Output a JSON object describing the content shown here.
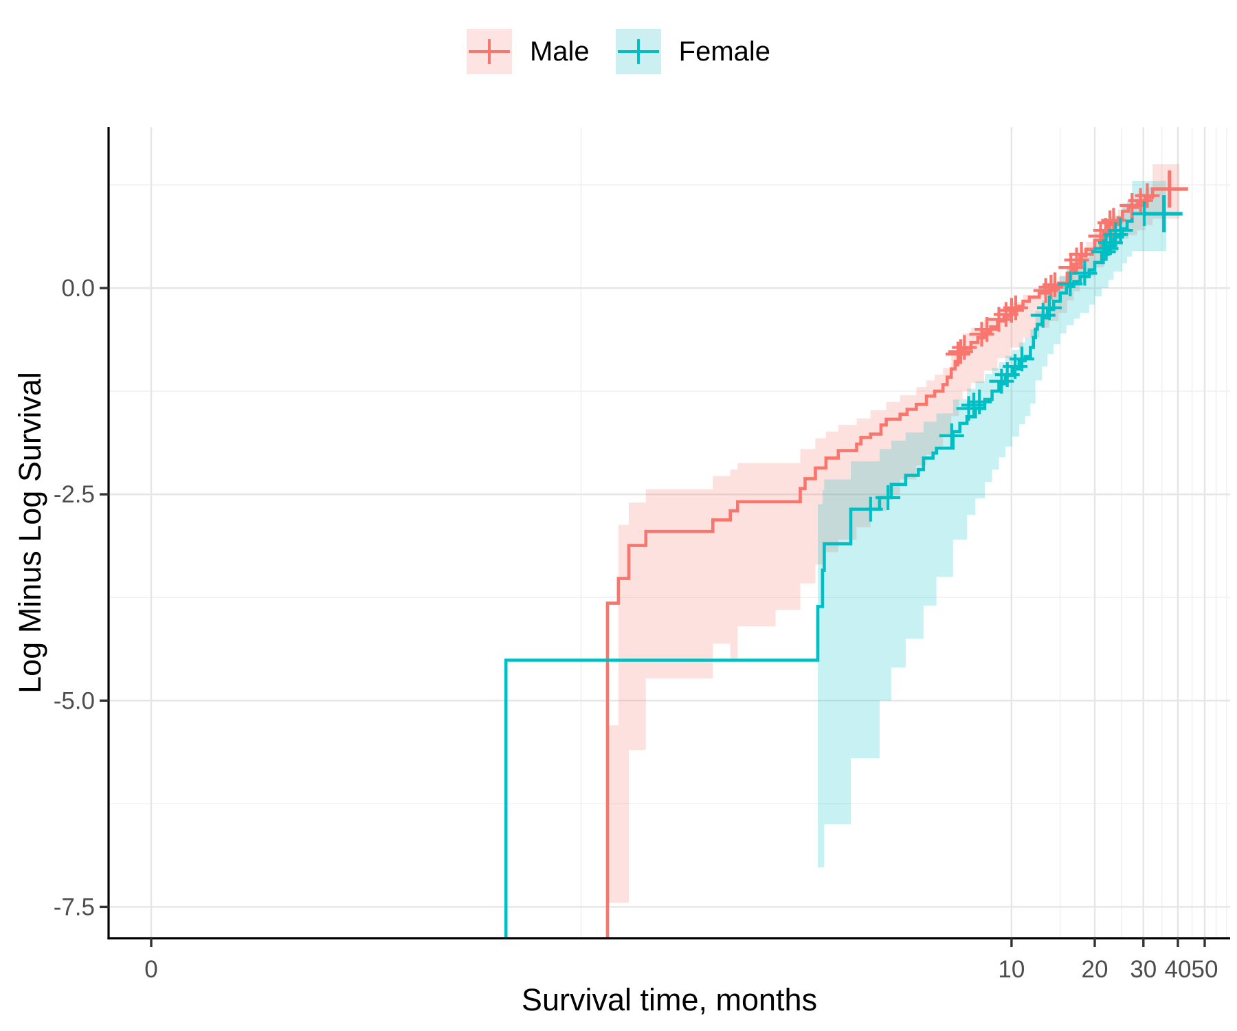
{
  "legend": {
    "position": "top",
    "items": [
      {
        "label": "Male",
        "color": "#F8766D",
        "key_fill": "#FDE4E2"
      },
      {
        "label": "Female",
        "color": "#00BFC4",
        "key_fill": "#CCF0F2"
      }
    ]
  },
  "colors": {
    "male": "#F8766D",
    "female": "#00BFC4",
    "ribbon_opacity": 0.22,
    "grid_major": "#E6E6E6",
    "grid_minor": "#F2F2F2",
    "axis_line": "#000000",
    "tick_mark": "#333333",
    "tick_text": "#4D4D4D"
  },
  "chart_data": {
    "type": "line",
    "subtype": "kaplan-meier-cloglog-step",
    "title": "",
    "xlabel": "Survival time, months",
    "ylabel": "Log Minus Log Survival",
    "x_scale": "log",
    "x_domain": [
      0.0054,
      61.8
    ],
    "y_domain": [
      -7.88,
      1.95
    ],
    "grid": true,
    "x_ticks": [
      {
        "label": "0",
        "value": 0,
        "pos": 0.0077
      },
      {
        "label": "10",
        "value": 10,
        "pos": 10
      },
      {
        "label": "20",
        "value": 20,
        "pos": 20
      },
      {
        "label": "30",
        "value": 30,
        "pos": 30
      },
      {
        "label": "40",
        "value": 40,
        "pos": 40
      },
      {
        "label": "50",
        "value": 50,
        "pos": 50
      }
    ],
    "x_minor": [
      0.277,
      15,
      25,
      35,
      45,
      55,
      60
    ],
    "y_ticks": [
      {
        "label": "0.0",
        "value": 0
      },
      {
        "label": "-2.5",
        "value": -2.5
      },
      {
        "label": "-5.0",
        "value": -5.0
      },
      {
        "label": "-7.5",
        "value": -7.5
      }
    ],
    "y_minor": [
      1.25,
      -1.25,
      -3.75,
      -6.25
    ],
    "series": [
      {
        "name": "Male",
        "color": "#F8766D",
        "end_t": 40.5,
        "steps": [
          [
            0.345,
            -3.82
          ],
          [
            0.378,
            -3.52
          ],
          [
            0.412,
            -3.12
          ],
          [
            0.475,
            -2.95
          ],
          [
            0.83,
            -2.81
          ],
          [
            0.96,
            -2.7
          ],
          [
            1.02,
            -2.59
          ],
          [
            1.72,
            -2.43
          ],
          [
            1.79,
            -2.31
          ],
          [
            1.95,
            -2.18
          ],
          [
            2.13,
            -2.06
          ],
          [
            2.36,
            -1.97
          ],
          [
            2.75,
            -1.89
          ],
          [
            2.85,
            -1.81
          ],
          [
            3.09,
            -1.77
          ],
          [
            3.37,
            -1.66
          ],
          [
            3.52,
            -1.59
          ],
          [
            3.95,
            -1.53
          ],
          [
            4.19,
            -1.47
          ],
          [
            4.52,
            -1.41
          ],
          [
            4.92,
            -1.31
          ],
          [
            5.27,
            -1.25
          ],
          [
            5.65,
            -1.17
          ],
          [
            5.85,
            -1.08
          ],
          [
            6.05,
            -0.98
          ],
          [
            6.25,
            -0.89
          ],
          [
            6.45,
            -0.8
          ],
          [
            6.65,
            -0.73
          ],
          [
            7.13,
            -0.66
          ],
          [
            7.55,
            -0.6
          ],
          [
            7.95,
            -0.54
          ],
          [
            8.4,
            -0.47
          ],
          [
            8.9,
            -0.4
          ],
          [
            9.4,
            -0.34
          ],
          [
            9.9,
            -0.28
          ],
          [
            10.4,
            -0.22
          ],
          [
            11.0,
            -0.16
          ],
          [
            11.6,
            -0.11
          ],
          [
            12.6,
            -0.06
          ],
          [
            13.7,
            -0.01
          ],
          [
            14.8,
            0.06
          ],
          [
            15.9,
            0.18
          ],
          [
            16.8,
            0.29
          ],
          [
            17.7,
            0.39
          ],
          [
            18.6,
            0.47
          ],
          [
            20.0,
            0.58
          ],
          [
            21.6,
            0.68
          ],
          [
            22.4,
            0.77
          ],
          [
            24.3,
            0.85
          ],
          [
            25.2,
            0.93
          ],
          [
            26.5,
            0.98
          ],
          [
            28.5,
            1.04
          ],
          [
            30.5,
            1.1
          ],
          [
            32.4,
            1.2
          ]
        ],
        "censors": [
          [
            6.4,
            -0.8
          ],
          [
            6.55,
            -0.77
          ],
          [
            6.75,
            -0.72
          ],
          [
            7.8,
            -0.56
          ],
          [
            8.15,
            -0.5
          ],
          [
            9.0,
            -0.38
          ],
          [
            9.55,
            -0.32
          ],
          [
            10.0,
            -0.27
          ],
          [
            10.35,
            -0.24
          ],
          [
            13.3,
            -0.03
          ],
          [
            13.9,
            0.01
          ],
          [
            14.35,
            0.04
          ],
          [
            16.4,
            0.25
          ],
          [
            17.2,
            0.34
          ],
          [
            17.9,
            0.41
          ],
          [
            21.0,
            0.63
          ],
          [
            21.9,
            0.7
          ],
          [
            22.7,
            0.79
          ],
          [
            23.4,
            0.82
          ],
          [
            27.3,
            1.0
          ],
          [
            29.3,
            1.06
          ],
          [
            31.0,
            1.12
          ]
        ],
        "end_censor": [
          37.3,
          1.2
        ],
        "ribbon": [
          [
            0.345,
            -7.45,
            -5.3
          ],
          [
            0.378,
            -7.45,
            -2.87
          ],
          [
            0.412,
            -5.6,
            -2.6
          ],
          [
            0.475,
            -4.73,
            -2.44
          ],
          [
            0.83,
            -4.31,
            -2.28
          ],
          [
            0.96,
            -4.49,
            -2.2
          ],
          [
            1.02,
            -4.1,
            -2.12
          ],
          [
            1.4,
            -3.9,
            -2.12
          ],
          [
            1.72,
            -3.58,
            -1.95
          ],
          [
            1.95,
            -3.35,
            -1.82
          ],
          [
            2.13,
            -3.2,
            -1.74
          ],
          [
            2.36,
            -3.05,
            -1.66
          ],
          [
            2.75,
            -2.9,
            -1.58
          ],
          [
            3.09,
            -2.7,
            -1.48
          ],
          [
            3.52,
            -2.5,
            -1.38
          ],
          [
            3.95,
            -2.32,
            -1.3
          ],
          [
            4.52,
            -2.15,
            -1.2
          ],
          [
            4.92,
            -2.02,
            -1.12
          ],
          [
            5.27,
            -1.92,
            -1.05
          ],
          [
            5.65,
            -1.8,
            -0.97
          ],
          [
            6.05,
            -1.55,
            -0.8
          ],
          [
            6.45,
            -1.35,
            -0.62
          ],
          [
            6.65,
            -1.25,
            -0.55
          ],
          [
            7.13,
            -1.15,
            -0.48
          ],
          [
            7.95,
            -1.0,
            -0.38
          ],
          [
            8.9,
            -0.85,
            -0.27
          ],
          [
            9.9,
            -0.72,
            -0.17
          ],
          [
            11.0,
            -0.6,
            -0.08
          ],
          [
            12.6,
            -0.48,
            0.0
          ],
          [
            13.7,
            -0.4,
            0.05
          ],
          [
            14.8,
            -0.3,
            0.14
          ],
          [
            15.9,
            -0.15,
            0.27
          ],
          [
            16.8,
            -0.04,
            0.38
          ],
          [
            17.7,
            0.06,
            0.48
          ],
          [
            18.6,
            0.14,
            0.56
          ],
          [
            20.0,
            0.25,
            0.67
          ],
          [
            21.6,
            0.35,
            0.78
          ],
          [
            22.4,
            0.44,
            0.87
          ],
          [
            24.3,
            0.52,
            0.95
          ],
          [
            25.2,
            0.6,
            1.03
          ],
          [
            26.5,
            0.64,
            1.08
          ],
          [
            28.5,
            0.7,
            1.15
          ],
          [
            30.5,
            0.76,
            1.22
          ],
          [
            32.4,
            0.84,
            1.5
          ],
          [
            40.5,
            0.84,
            1.5
          ]
        ]
      },
      {
        "name": "Female",
        "color": "#00BFC4",
        "end_t": 36.3,
        "steps": [
          [
            0.148,
            -4.51
          ],
          [
            1.99,
            -3.86
          ],
          [
            2.07,
            -3.42
          ],
          [
            2.1,
            -3.1
          ],
          [
            2.62,
            -2.68
          ],
          [
            3.33,
            -2.54
          ],
          [
            3.67,
            -2.38
          ],
          [
            4.14,
            -2.27
          ],
          [
            4.6,
            -2.2
          ],
          [
            4.8,
            -2.06
          ],
          [
            5.2,
            -2.0
          ],
          [
            5.35,
            -1.94
          ],
          [
            6.14,
            -1.74
          ],
          [
            6.5,
            -1.64
          ],
          [
            6.9,
            -1.56
          ],
          [
            7.4,
            -1.46
          ],
          [
            8.0,
            -1.35
          ],
          [
            8.5,
            -1.25
          ],
          [
            9.0,
            -1.16
          ],
          [
            9.5,
            -1.06
          ],
          [
            10.05,
            -0.98
          ],
          [
            10.65,
            -0.88
          ],
          [
            11.2,
            -0.83
          ],
          [
            11.7,
            -0.72
          ],
          [
            12.0,
            -0.6
          ],
          [
            12.2,
            -0.5
          ],
          [
            12.4,
            -0.44
          ],
          [
            12.9,
            -0.36
          ],
          [
            13.5,
            -0.26
          ],
          [
            14.2,
            -0.16
          ],
          [
            15.0,
            -0.06
          ],
          [
            15.8,
            0.02
          ],
          [
            16.8,
            0.08
          ],
          [
            17.7,
            0.14
          ],
          [
            19.1,
            0.22
          ],
          [
            20.0,
            0.31
          ],
          [
            21.2,
            0.41
          ],
          [
            22.4,
            0.51
          ],
          [
            23.4,
            0.62
          ],
          [
            25.2,
            0.72
          ],
          [
            26.2,
            0.81
          ],
          [
            27.3,
            0.9
          ]
        ],
        "censors": [
          [
            3.09,
            -2.68
          ],
          [
            3.57,
            -2.54
          ],
          [
            6.07,
            -1.79
          ],
          [
            7.0,
            -1.46
          ],
          [
            7.3,
            -1.42
          ],
          [
            7.65,
            -1.38
          ],
          [
            9.2,
            -1.13
          ],
          [
            9.65,
            -1.05
          ],
          [
            10.3,
            -0.95
          ],
          [
            10.9,
            -0.86
          ],
          [
            13.0,
            -0.33
          ],
          [
            13.7,
            -0.24
          ],
          [
            16.3,
            0.05
          ],
          [
            18.4,
            0.18
          ],
          [
            21.5,
            0.44
          ],
          [
            22.0,
            0.48
          ],
          [
            22.8,
            0.55
          ],
          [
            23.8,
            0.65
          ],
          [
            24.8,
            0.7
          ],
          [
            30.2,
            0.9
          ]
        ],
        "end_censor": [
          35.6,
          0.9
        ],
        "ribbon": [
          [
            1.99,
            -7.02,
            -2.62
          ],
          [
            2.07,
            -7.02,
            -2.45
          ],
          [
            2.1,
            -6.5,
            -2.32
          ],
          [
            2.62,
            -5.7,
            -2.1
          ],
          [
            3.33,
            -5.0,
            -1.95
          ],
          [
            3.67,
            -4.6,
            -1.85
          ],
          [
            4.14,
            -4.25,
            -1.75
          ],
          [
            4.8,
            -3.85,
            -1.62
          ],
          [
            5.35,
            -3.5,
            -1.52
          ],
          [
            6.14,
            -3.05,
            -1.35
          ],
          [
            6.9,
            -2.75,
            -1.22
          ],
          [
            7.4,
            -2.55,
            -1.13
          ],
          [
            8.0,
            -2.35,
            -1.04
          ],
          [
            8.5,
            -2.2,
            -0.97
          ],
          [
            9.0,
            -2.05,
            -0.9
          ],
          [
            9.5,
            -1.92,
            -0.82
          ],
          [
            10.05,
            -1.8,
            -0.75
          ],
          [
            10.65,
            -1.65,
            -0.66
          ],
          [
            11.2,
            -1.55,
            -0.6
          ],
          [
            11.7,
            -1.4,
            -0.5
          ],
          [
            12.2,
            -1.12,
            -0.28
          ],
          [
            12.9,
            -0.95,
            -0.15
          ],
          [
            13.5,
            -0.8,
            -0.05
          ],
          [
            14.2,
            -0.68,
            0.05
          ],
          [
            15.0,
            -0.55,
            0.15
          ],
          [
            15.8,
            -0.45,
            0.23
          ],
          [
            16.8,
            -0.37,
            0.3
          ],
          [
            17.7,
            -0.3,
            0.37
          ],
          [
            19.1,
            -0.2,
            0.46
          ],
          [
            20.0,
            -0.1,
            0.55
          ],
          [
            21.2,
            0.0,
            0.65
          ],
          [
            22.4,
            0.1,
            0.76
          ],
          [
            23.4,
            0.2,
            0.88
          ],
          [
            25.2,
            0.3,
            0.98
          ],
          [
            26.2,
            0.38,
            1.06
          ],
          [
            27.3,
            0.45,
            1.3
          ],
          [
            36.3,
            0.45,
            1.3
          ]
        ]
      }
    ]
  }
}
